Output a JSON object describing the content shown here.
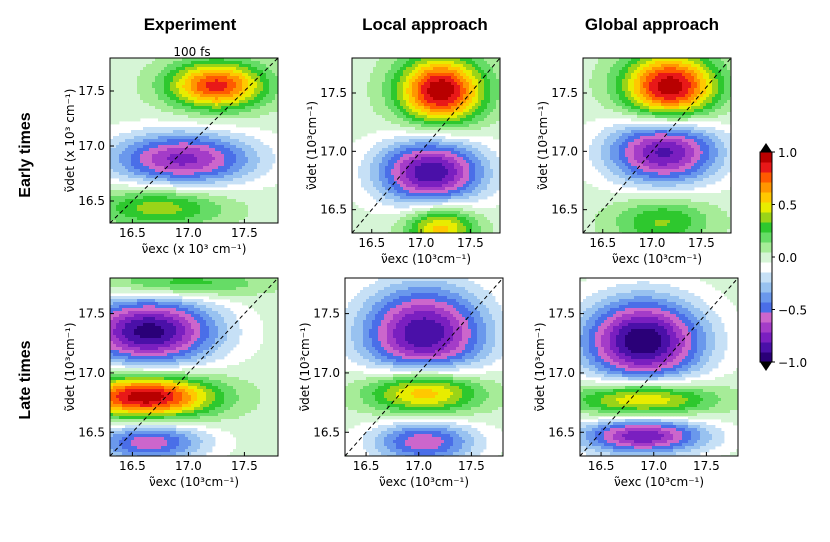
{
  "figure": {
    "column_titles": [
      "Experiment",
      "Local approach",
      "Global approach"
    ],
    "row_titles": [
      "Early times",
      "Late times"
    ],
    "panel_subtitle": "100 fs"
  },
  "chart_data": {
    "type": "heatmap",
    "xlim": [
      16.3,
      17.8
    ],
    "ylim": [
      16.3,
      17.8
    ],
    "x_ticks": [
      "16.5",
      "17.0",
      "17.5"
    ],
    "y_ticks": [
      "16.5",
      "17.0",
      "17.5"
    ],
    "x_tick_values": [
      16.5,
      17.0,
      17.5
    ],
    "y_tick_values": [
      16.5,
      17.0,
      17.5
    ],
    "colorbar": {
      "range": [
        -1.0,
        1.0
      ],
      "tick_labels": [
        "1.0",
        "0.5",
        "0.0",
        "−0.5",
        "−1.0"
      ],
      "tick_values": [
        1.0,
        0.5,
        0.0,
        -0.5,
        -1.0
      ],
      "colors_low_to_high": [
        "#2a0078",
        "#4a10a8",
        "#7a1fc0",
        "#a43cc8",
        "#cc66cc",
        "#4a6ee8",
        "#6a98ec",
        "#98c2f0",
        "#c6e0f6",
        "#ffffff",
        "#d6f5d6",
        "#a6ec98",
        "#66dc66",
        "#2ec82e",
        "#9ad418",
        "#e8ec00",
        "#ffc800",
        "#ff9600",
        "#ff5a00",
        "#e81818",
        "#b80000"
      ]
    },
    "panels": [
      {
        "name": "experiment-early",
        "x_label": "ν̃exc (x 10³ cm⁻¹)",
        "y_label": "ν̃det (x 10³ cm⁻¹)",
        "peaks": [
          {
            "x": 17.25,
            "y": 17.55,
            "amplitude": 0.85,
            "sx": 0.3,
            "sy": 0.15
          },
          {
            "x": 16.95,
            "y": 16.88,
            "amplitude": -0.75,
            "sx": 0.45,
            "sy": 0.17
          },
          {
            "x": 16.75,
            "y": 16.45,
            "amplitude": 0.4,
            "sx": 0.4,
            "sy": 0.13
          }
        ]
      },
      {
        "name": "local-early",
        "x_label": "ν̃exc (10³cm⁻¹)",
        "y_label": "ν̃det (10³cm⁻¹)",
        "peaks": [
          {
            "x": 17.2,
            "y": 17.52,
            "amplitude": 1.0,
            "sx": 0.3,
            "sy": 0.2
          },
          {
            "x": 17.1,
            "y": 16.82,
            "amplitude": -0.9,
            "sx": 0.38,
            "sy": 0.2
          },
          {
            "x": 17.2,
            "y": 16.35,
            "amplitude": 0.6,
            "sx": 0.25,
            "sy": 0.14
          }
        ]
      },
      {
        "name": "global-early",
        "x_label": "ν̃exc (10³cm⁻¹)",
        "y_label": "ν̃det (10³cm⁻¹)",
        "peaks": [
          {
            "x": 17.18,
            "y": 17.55,
            "amplitude": 1.0,
            "sx": 0.33,
            "sy": 0.2
          },
          {
            "x": 17.12,
            "y": 17.0,
            "amplitude": -0.85,
            "sx": 0.4,
            "sy": 0.2
          },
          {
            "x": 17.1,
            "y": 16.4,
            "amplitude": 0.35,
            "sx": 0.35,
            "sy": 0.15
          }
        ]
      },
      {
        "name": "experiment-late",
        "x_label": "ν̃exc (10³cm⁻¹)",
        "y_label": "ν̃det (10³cm⁻¹)",
        "peaks": [
          {
            "x": 16.65,
            "y": 17.35,
            "amplitude": -0.95,
            "sx": 0.42,
            "sy": 0.2
          },
          {
            "x": 16.62,
            "y": 16.8,
            "amplitude": 1.0,
            "sx": 0.42,
            "sy": 0.13
          },
          {
            "x": 16.65,
            "y": 16.42,
            "amplitude": -0.6,
            "sx": 0.35,
            "sy": 0.12
          },
          {
            "x": 16.9,
            "y": 17.75,
            "amplitude": 0.35,
            "sx": 0.5,
            "sy": 0.08
          }
        ]
      },
      {
        "name": "local-late",
        "x_label": "ν̃exc (10³cm⁻¹)",
        "y_label": "ν̃det (10³cm⁻¹)",
        "peaks": [
          {
            "x": 17.05,
            "y": 17.33,
            "amplitude": -0.9,
            "sx": 0.42,
            "sy": 0.28
          },
          {
            "x": 17.05,
            "y": 16.85,
            "amplitude": 0.75,
            "sx": 0.38,
            "sy": 0.14
          },
          {
            "x": 17.05,
            "y": 16.42,
            "amplitude": -0.6,
            "sx": 0.35,
            "sy": 0.13
          }
        ]
      },
      {
        "name": "global-late",
        "x_label": "ν̃exc (10³cm⁻¹)",
        "y_label": "ν̃det (10³cm⁻¹)",
        "peaks": [
          {
            "x": 16.9,
            "y": 17.27,
            "amplitude": -1.0,
            "sx": 0.4,
            "sy": 0.25
          },
          {
            "x": 16.9,
            "y": 16.78,
            "amplitude": 0.65,
            "sx": 0.45,
            "sy": 0.11
          },
          {
            "x": 16.9,
            "y": 16.47,
            "amplitude": -0.8,
            "sx": 0.42,
            "sy": 0.11
          }
        ]
      }
    ]
  }
}
